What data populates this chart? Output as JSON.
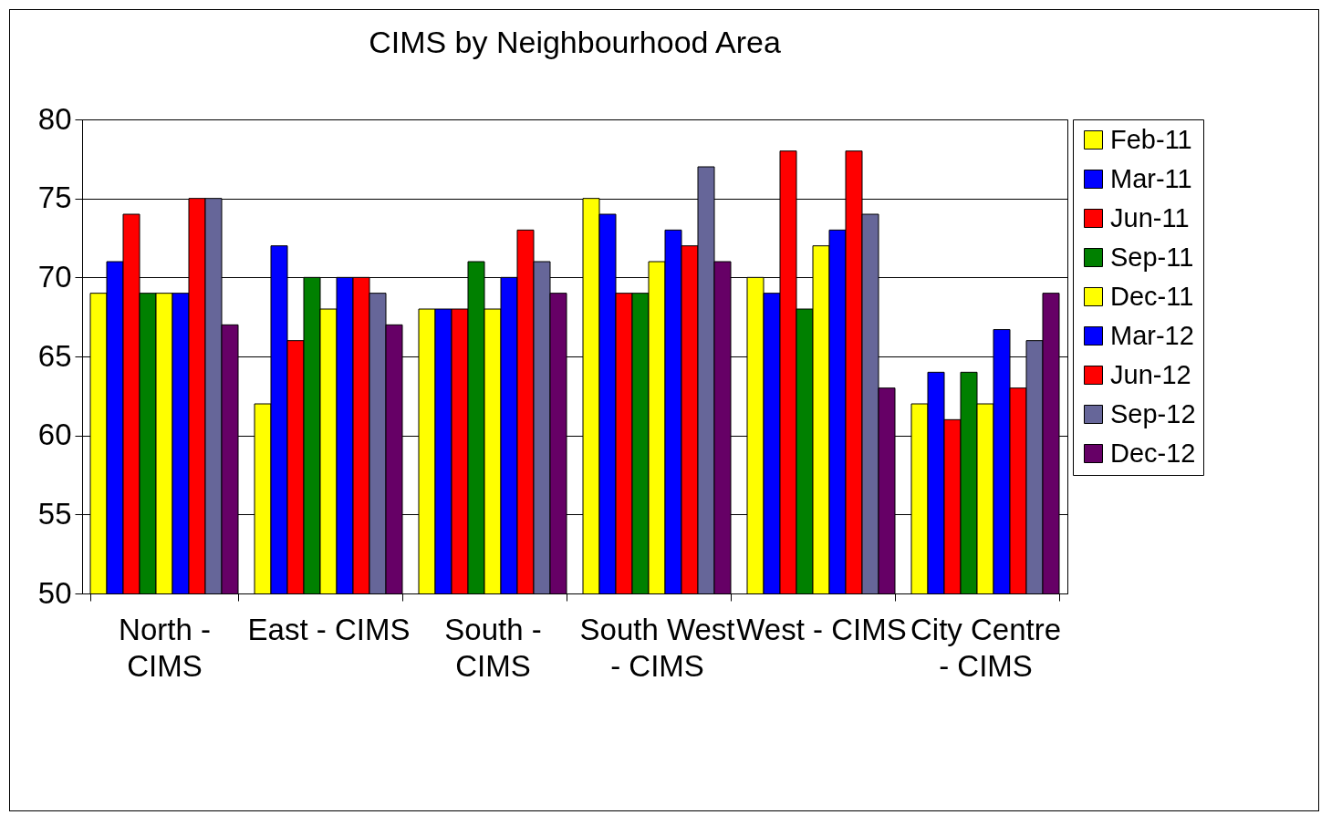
{
  "chart_data": {
    "type": "bar",
    "title": "CIMS by Neighbourhood Area",
    "categories": [
      "North - CIMS",
      "East - CIMS",
      "South - CIMS",
      "South West - CIMS",
      "West - CIMS",
      "City Centre - CIMS"
    ],
    "series": [
      {
        "name": "Feb-11",
        "color": "#ffff00",
        "values": [
          69,
          62,
          68,
          75,
          70,
          62
        ]
      },
      {
        "name": "Mar-11",
        "color": "#0000ff",
        "values": [
          71,
          72,
          68,
          74,
          69,
          64
        ]
      },
      {
        "name": "Jun-11",
        "color": "#ff0000",
        "values": [
          74,
          66,
          68,
          69,
          78,
          61
        ]
      },
      {
        "name": "Sep-11",
        "color": "#008000",
        "values": [
          69,
          70,
          71,
          69,
          68,
          64
        ]
      },
      {
        "name": "Dec-11",
        "color": "#ffff00",
        "values": [
          69,
          68,
          68,
          71,
          72,
          62
        ]
      },
      {
        "name": "Mar-12",
        "color": "#0000ff",
        "values": [
          69,
          70,
          70,
          73,
          73,
          66.7
        ]
      },
      {
        "name": "Jun-12",
        "color": "#ff0000",
        "values": [
          75,
          70,
          73,
          72,
          78,
          63
        ]
      },
      {
        "name": "Sep-12",
        "color": "#666699",
        "values": [
          75,
          69,
          71,
          77,
          74,
          66
        ]
      },
      {
        "name": "Dec-12",
        "color": "#660066",
        "values": [
          67,
          67,
          69,
          71,
          63,
          69
        ]
      }
    ],
    "ylim": [
      50,
      80
    ],
    "yticks": [
      50,
      55,
      60,
      65,
      70,
      75,
      80
    ],
    "grid": "y",
    "legend": "right"
  }
}
